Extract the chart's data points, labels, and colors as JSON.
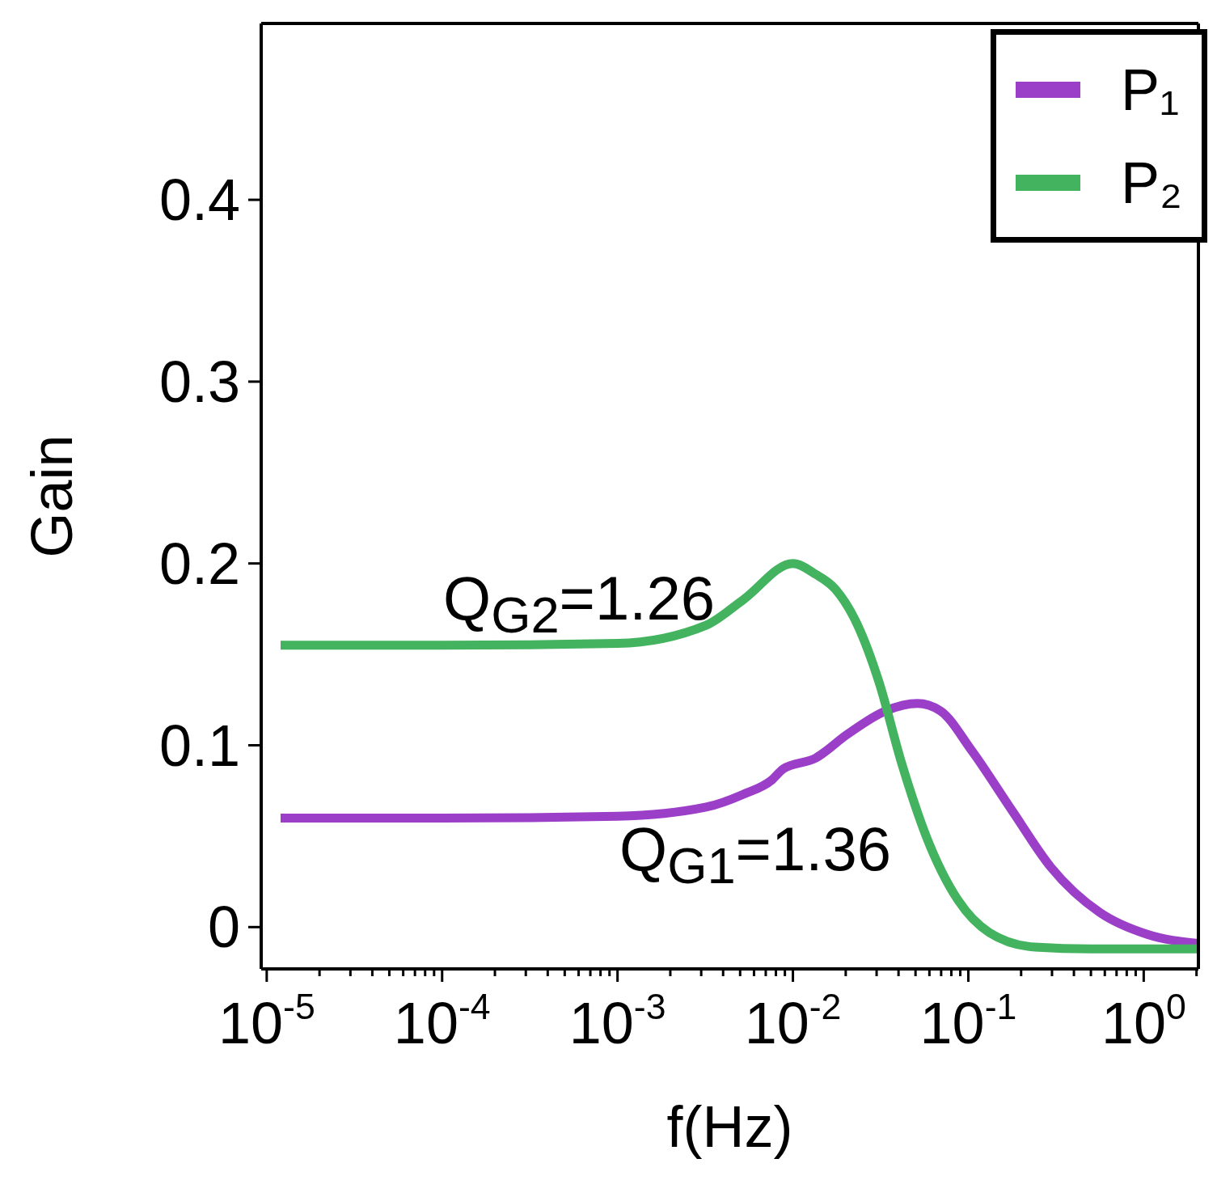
{
  "chart_data": {
    "type": "line",
    "xlabel": "f(Hz)",
    "ylabel": "Gain",
    "log": "x",
    "xlim": [
      9.3e-06,
      2.05
    ],
    "ylim": [
      -0.023,
      0.497
    ],
    "xticks": [
      {
        "value": 1e-05,
        "label": "10$^{-5}$"
      },
      {
        "value": 2e-05,
        "label": null
      },
      {
        "value": 3e-05,
        "label": null
      },
      {
        "value": 4e-05,
        "label": null
      },
      {
        "value": 5e-05,
        "label": null
      },
      {
        "value": 6e-05,
        "label": null
      },
      {
        "value": 7e-05,
        "label": null
      },
      {
        "value": 8e-05,
        "label": null
      },
      {
        "value": 9e-05,
        "label": null
      },
      {
        "value": 0.0001,
        "label": "10$^{-4}$"
      },
      {
        "value": 0.0002,
        "label": null
      },
      {
        "value": 0.0003,
        "label": null
      },
      {
        "value": 0.0004,
        "label": null
      },
      {
        "value": 0.0005,
        "label": null
      },
      {
        "value": 0.0006,
        "label": null
      },
      {
        "value": 0.0007,
        "label": null
      },
      {
        "value": 0.0008,
        "label": null
      },
      {
        "value": 0.0009,
        "label": null
      },
      {
        "value": 0.001,
        "label": "10$^{-3}$"
      },
      {
        "value": 0.002,
        "label": null
      },
      {
        "value": 0.003,
        "label": null
      },
      {
        "value": 0.004,
        "label": null
      },
      {
        "value": 0.005,
        "label": null
      },
      {
        "value": 0.006,
        "label": null
      },
      {
        "value": 0.007,
        "label": null
      },
      {
        "value": 0.008,
        "label": null
      },
      {
        "value": 0.009,
        "label": null
      },
      {
        "value": 0.01,
        "label": "10$^{-2}$"
      },
      {
        "value": 0.02,
        "label": null
      },
      {
        "value": 0.03,
        "label": null
      },
      {
        "value": 0.04,
        "label": null
      },
      {
        "value": 0.05,
        "label": null
      },
      {
        "value": 0.06,
        "label": null
      },
      {
        "value": 0.07,
        "label": null
      },
      {
        "value": 0.08,
        "label": null
      },
      {
        "value": 0.09,
        "label": null
      },
      {
        "value": 0.1,
        "label": "10$^{-1}$"
      },
      {
        "value": 0.2,
        "label": null
      },
      {
        "value": 0.3,
        "label": null
      },
      {
        "value": 0.4,
        "label": null
      },
      {
        "value": 0.5,
        "label": null
      },
      {
        "value": 0.6,
        "label": null
      },
      {
        "value": 0.7,
        "label": null
      },
      {
        "value": 0.8,
        "label": null
      },
      {
        "value": 0.9,
        "label": null
      },
      {
        "value": 1,
        "label": "10$^{0}$"
      },
      {
        "value": 2,
        "label": null
      }
    ],
    "yticks": [
      0,
      0.1,
      0.2,
      0.3,
      0.4
    ],
    "grid": false,
    "legend": "top right",
    "marker": "none",
    "line_style": "solid",
    "annotations": [
      "Q$_{G2}$=1.26",
      "Q$_{G1}$=1.36"
    ],
    "series": [
      {
        "name": "P₁",
        "color": "#9b3fc9",
        "x": [
          1.2e-05,
          0.0001,
          0.001,
          0.0032,
          0.0052,
          0.0076,
          0.0088,
          0.0135,
          0.0204,
          0.0339,
          0.0513,
          0.0692,
          0.1047,
          0.1778,
          0.2951,
          0.5623,
          1.047,
          2.04
        ],
        "values": [
          0.06,
          0.06,
          0.061,
          0.066,
          0.073,
          0.081,
          0.087,
          0.093,
          0.106,
          0.119,
          0.123,
          0.119,
          0.097,
          0.064,
          0.033,
          0.008,
          -0.004,
          -0.009
        ]
      },
      {
        "name": "P₂",
        "color": "#44b35f",
        "x": [
          1.2e-05,
          0.0001,
          0.001,
          0.0032,
          0.0052,
          0.01,
          0.0135,
          0.0174,
          0.0234,
          0.0309,
          0.0417,
          0.0575,
          0.0871,
          0.1318,
          0.2399,
          0.5,
          2.04
        ],
        "values": [
          0.155,
          0.155,
          0.156,
          0.166,
          0.18,
          0.2,
          0.194,
          0.186,
          0.166,
          0.135,
          0.09,
          0.05,
          0.015,
          -0.003,
          -0.011,
          -0.012,
          -0.012
        ]
      }
    ]
  }
}
